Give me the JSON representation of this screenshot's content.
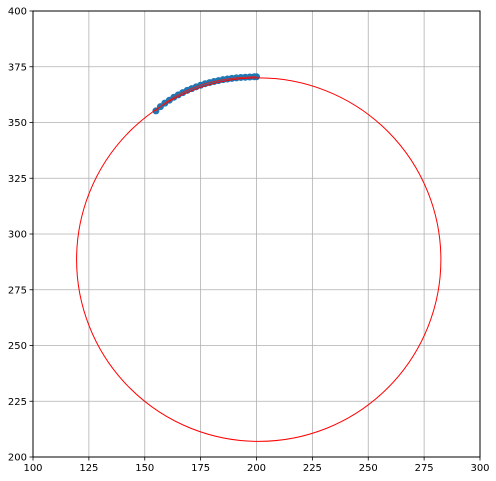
{
  "chart_data": {
    "type": "scatter",
    "title": "",
    "xlabel": "",
    "ylabel": "",
    "xlim": [
      100,
      300
    ],
    "ylim": [
      200,
      400
    ],
    "xticks": [
      100,
      125,
      150,
      175,
      200,
      225,
      250,
      275,
      300
    ],
    "yticks": [
      200,
      225,
      250,
      275,
      300,
      325,
      350,
      375,
      400
    ],
    "grid": true,
    "aspect": "equal",
    "series": [
      {
        "kind": "scatter",
        "color": "#1f77b4",
        "x": [
          155,
          157,
          159,
          161,
          163,
          165,
          167,
          169,
          171,
          173,
          175,
          177,
          179,
          181,
          183,
          185,
          187,
          189,
          191,
          193,
          195,
          197,
          199,
          200
        ],
        "y": [
          355.2,
          357.1,
          358.7,
          360.0,
          361.3,
          362.4,
          363.4,
          364.4,
          365.2,
          366.0,
          366.7,
          367.4,
          367.9,
          368.4,
          368.8,
          369.2,
          369.5,
          369.8,
          370.0,
          370.2,
          370.3,
          370.4,
          370.5,
          370.5
        ]
      },
      {
        "kind": "circle",
        "color": "#ff0000",
        "center": [
          201,
          288.5
        ],
        "radius": 81.5
      }
    ]
  }
}
